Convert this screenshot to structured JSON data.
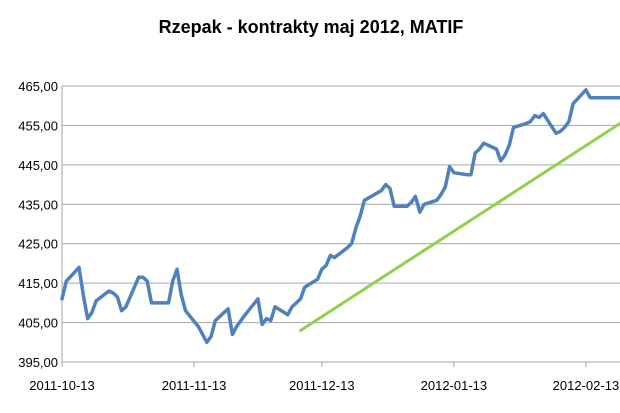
{
  "chart_data": {
    "type": "line",
    "title": "Rzepak - kontrakty maj 2012, MATIF",
    "xlabel": "",
    "ylabel": "",
    "ylim": [
      395,
      465
    ],
    "y_ticks": [
      "395,00",
      "405,00",
      "415,00",
      "425,00",
      "435,00",
      "445,00",
      "455,00",
      "465,00"
    ],
    "y_tick_values": [
      395,
      405,
      415,
      425,
      435,
      445,
      455,
      465
    ],
    "x_ticks": [
      "2011-10-13",
      "2011-11-13",
      "2011-12-13",
      "2012-01-13",
      "2012-02-13"
    ],
    "x_tick_dates": [
      "2011-10-13",
      "2011-11-13",
      "2011-12-13",
      "2012-01-13",
      "2012-02-13"
    ],
    "x_range": [
      "2011-10-13",
      "2012-02-21"
    ],
    "grid": "horizontal",
    "colors": {
      "series": "#4f81bd",
      "trend": "#92d050",
      "grid": "#a6a6a6"
    },
    "series": [
      {
        "color": "#4f81bd",
        "x": [
          "2011-10-13",
          "2011-10-14",
          "2011-10-17",
          "2011-10-18",
          "2011-10-19",
          "2011-10-20",
          "2011-10-21",
          "2011-10-24",
          "2011-10-25",
          "2011-10-26",
          "2011-10-27",
          "2011-10-28",
          "2011-10-31",
          "2011-11-01",
          "2011-11-02",
          "2011-11-03",
          "2011-11-04",
          "2011-11-07",
          "2011-11-08",
          "2011-11-09",
          "2011-11-10",
          "2011-11-11",
          "2011-11-14",
          "2011-11-15",
          "2011-11-16",
          "2011-11-17",
          "2011-11-18",
          "2011-11-21",
          "2011-11-22",
          "2011-11-23",
          "2011-11-24",
          "2011-11-25",
          "2011-11-28",
          "2011-11-29",
          "2011-11-30",
          "2011-12-01",
          "2011-12-02",
          "2011-12-05",
          "2011-12-06",
          "2011-12-07",
          "2011-12-08",
          "2011-12-09",
          "2011-12-12",
          "2011-12-13",
          "2011-12-14",
          "2011-12-15",
          "2011-12-16",
          "2011-12-19",
          "2011-12-20",
          "2011-12-21",
          "2011-12-22",
          "2011-12-23",
          "2011-12-27",
          "2011-12-28",
          "2011-12-29",
          "2011-12-30",
          "2012-01-02",
          "2012-01-03",
          "2012-01-04",
          "2012-01-05",
          "2012-01-06",
          "2012-01-09",
          "2012-01-10",
          "2012-01-11",
          "2012-01-12",
          "2012-01-13",
          "2012-01-16",
          "2012-01-17",
          "2012-01-18",
          "2012-01-19",
          "2012-01-20",
          "2012-01-23",
          "2012-01-24",
          "2012-01-25",
          "2012-01-26",
          "2012-01-27",
          "2012-01-30",
          "2012-01-31",
          "2012-02-01",
          "2012-02-02",
          "2012-02-03",
          "2012-02-06",
          "2012-02-07",
          "2012-02-08",
          "2012-02-09",
          "2012-02-10",
          "2012-02-13",
          "2012-02-14",
          "2012-02-15",
          "2012-02-16",
          "2012-02-17",
          "2012-02-20",
          "2012-02-21"
        ],
        "values": [
          411,
          415.5,
          419,
          412,
          406,
          407.5,
          410.5,
          413,
          412.5,
          411.5,
          408,
          409,
          416.5,
          416.5,
          415.5,
          410,
          410,
          410,
          415.5,
          418.5,
          412,
          408,
          404,
          402,
          400,
          401.5,
          405.5,
          408.5,
          402,
          404,
          405.5,
          407,
          411,
          404.5,
          406,
          405.5,
          409,
          407,
          409,
          410,
          411,
          414,
          416,
          418.5,
          419.5,
          422,
          421.5,
          424,
          425,
          429,
          432,
          436,
          438.5,
          440,
          439,
          434.5,
          434.5,
          435.5,
          437,
          433,
          435,
          436,
          437.5,
          439.5,
          444.5,
          443,
          442.5,
          442.5,
          448,
          449,
          450.5,
          449,
          446,
          447.5,
          450,
          454.5,
          455.5,
          456,
          457.5,
          457,
          458,
          453,
          453.5,
          454.5,
          456,
          460.5,
          464,
          462,
          462,
          462,
          462,
          462,
          462
        ]
      },
      {
        "color": "#92d050",
        "x": [
          "2011-12-08",
          "2012-02-21"
        ],
        "values": [
          403,
          455.5
        ]
      }
    ]
  }
}
